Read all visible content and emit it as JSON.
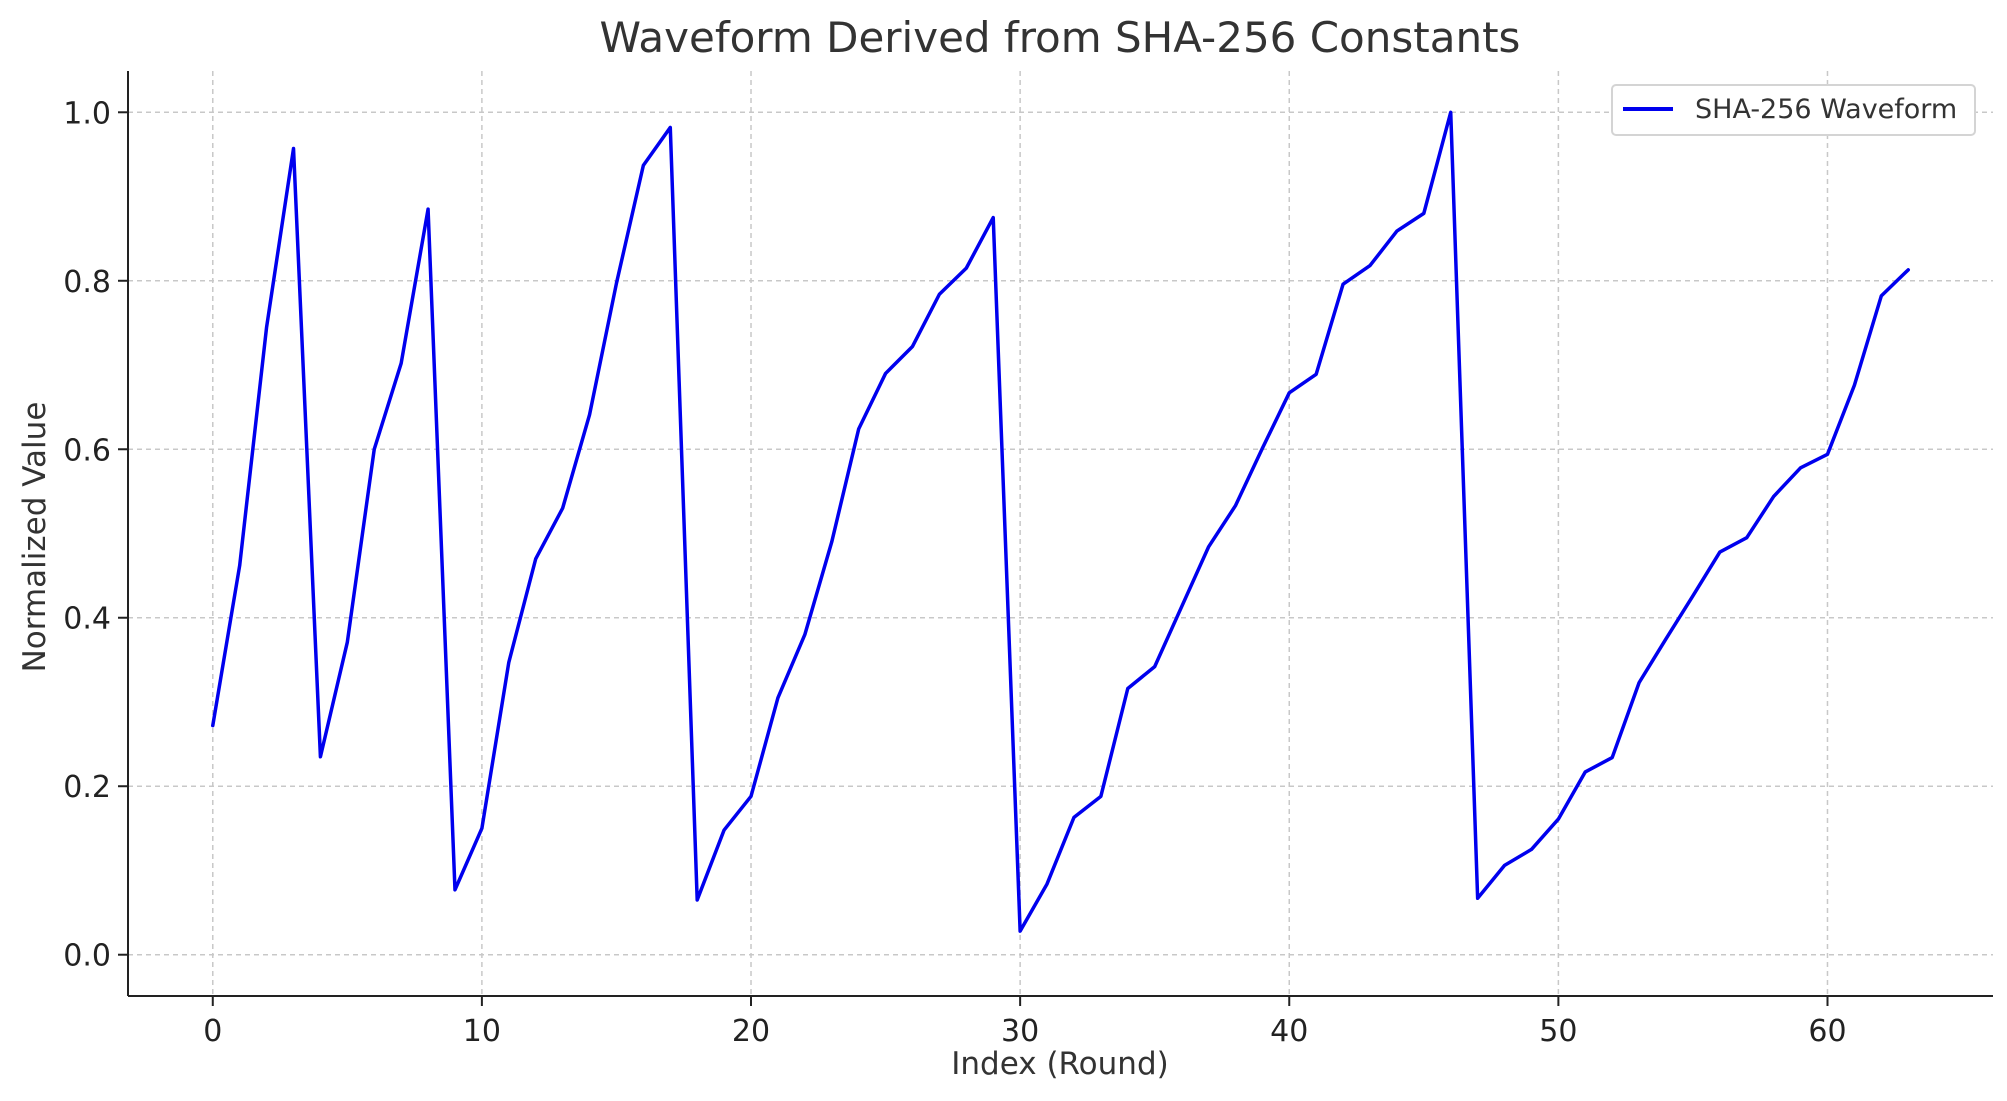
{
  "chart_data": {
    "type": "line",
    "title": "Waveform Derived from SHA-256 Constants",
    "xlabel": "Index (Round)",
    "ylabel": "Normalized Value",
    "xlim": [
      -3.15,
      66.15
    ],
    "ylim": [
      -0.049,
      1.049
    ],
    "xticks": [
      0,
      10,
      20,
      30,
      40,
      50,
      60
    ],
    "yticks": [
      0.0,
      0.2,
      0.4,
      0.6,
      0.8,
      1.0
    ],
    "xtick_labels": [
      "0",
      "10",
      "20",
      "30",
      "40",
      "50",
      "60"
    ],
    "ytick_labels": [
      "0.0",
      "0.2",
      "0.4",
      "0.6",
      "0.8",
      "1.0"
    ],
    "grid": true,
    "legend": {
      "placement": "top-right",
      "entries": [
        "SHA-256 Waveform"
      ]
    },
    "series": [
      {
        "name": "SHA-256 Waveform",
        "color": "#0000ee",
        "x": [
          0,
          1,
          2,
          3,
          4,
          5,
          6,
          7,
          8,
          9,
          10,
          11,
          12,
          13,
          14,
          15,
          16,
          17,
          18,
          19,
          20,
          21,
          22,
          23,
          24,
          25,
          26,
          27,
          28,
          29,
          30,
          31,
          32,
          33,
          34,
          35,
          36,
          37,
          38,
          39,
          40,
          41,
          42,
          43,
          44,
          45,
          46,
          47,
          48,
          49,
          50,
          51,
          52,
          53,
          54,
          55,
          56,
          57,
          58,
          59,
          60,
          61,
          62,
          63
        ],
        "values": [
          0.272,
          0.462,
          0.745,
          0.957,
          0.235,
          0.371,
          0.6,
          0.702,
          0.885,
          0.077,
          0.15,
          0.347,
          0.47,
          0.53,
          0.641,
          0.797,
          0.937,
          0.982,
          0.065,
          0.148,
          0.188,
          0.305,
          0.38,
          0.49,
          0.624,
          0.69,
          0.722,
          0.784,
          0.815,
          0.875,
          0.028,
          0.084,
          0.163,
          0.188,
          0.316,
          0.342,
          0.413,
          0.484,
          0.533,
          0.601,
          0.667,
          0.689,
          0.796,
          0.818,
          0.859,
          0.88,
          1.0,
          0.067,
          0.106,
          0.125,
          0.161,
          0.217,
          0.234,
          0.323,
          0.375,
          0.426,
          0.478,
          0.495,
          0.544,
          0.578,
          0.594,
          0.676,
          0.782,
          0.813
        ]
      }
    ]
  }
}
